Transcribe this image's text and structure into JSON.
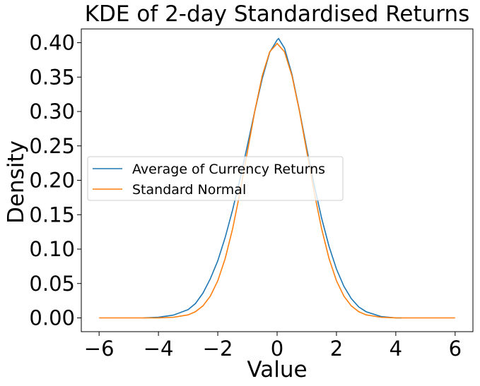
{
  "chart_data": {
    "type": "line",
    "title": "KDE of 2-day Standardised Returns",
    "xlabel": "Value",
    "ylabel": "Density",
    "xlim": [
      -6.6,
      6.6
    ],
    "ylim": [
      -0.02,
      0.42
    ],
    "xticks": [
      -6,
      -4,
      -2,
      0,
      2,
      4,
      6
    ],
    "xtick_labels": [
      "−6",
      "−4",
      "−2",
      "0",
      "2",
      "4",
      "6"
    ],
    "yticks": [
      0.0,
      0.05,
      0.1,
      0.15,
      0.2,
      0.25,
      0.3,
      0.35,
      0.4
    ],
    "ytick_labels": [
      "0.00",
      "0.05",
      "0.10",
      "0.15",
      "0.20",
      "0.25",
      "0.30",
      "0.35",
      "0.40"
    ],
    "grid": false,
    "legend_position": "center-left",
    "series": [
      {
        "name": "Average of Currency Returns",
        "color": "#1f77b4",
        "x": [
          -4.5,
          -4.0,
          -3.5,
          -3.0,
          -2.75,
          -2.5,
          -2.25,
          -2.0,
          -1.75,
          -1.5,
          -1.25,
          -1.0,
          -0.75,
          -0.5,
          -0.25,
          0.0,
          0.05,
          0.25,
          0.5,
          0.75,
          1.0,
          1.25,
          1.5,
          1.75,
          2.0,
          2.25,
          2.5,
          2.75,
          3.0,
          3.5,
          4.0,
          4.2
        ],
        "y": [
          0.0,
          0.001,
          0.004,
          0.012,
          0.021,
          0.036,
          0.057,
          0.083,
          0.117,
          0.157,
          0.202,
          0.251,
          0.301,
          0.348,
          0.386,
          0.404,
          0.406,
          0.392,
          0.354,
          0.302,
          0.246,
          0.193,
          0.145,
          0.104,
          0.071,
          0.046,
          0.028,
          0.016,
          0.009,
          0.002,
          0.0,
          0.0
        ]
      },
      {
        "name": "Standard Normal",
        "color": "#ff7f0e",
        "x": [
          -6.0,
          -5.0,
          -4.5,
          -4.0,
          -3.5,
          -3.0,
          -2.75,
          -2.5,
          -2.25,
          -2.0,
          -1.75,
          -1.5,
          -1.25,
          -1.0,
          -0.75,
          -0.5,
          -0.25,
          0.0,
          0.25,
          0.5,
          0.75,
          1.0,
          1.25,
          1.5,
          1.75,
          2.0,
          2.25,
          2.5,
          2.75,
          3.0,
          3.5,
          4.0,
          4.5,
          5.0,
          6.0
        ],
        "y": [
          0.0,
          0.0,
          0.0,
          0.0001,
          0.0009,
          0.0044,
          0.0091,
          0.0175,
          0.0317,
          0.054,
          0.0863,
          0.1295,
          0.1826,
          0.242,
          0.3011,
          0.3521,
          0.3867,
          0.3989,
          0.3867,
          0.3521,
          0.3011,
          0.242,
          0.1826,
          0.1295,
          0.0863,
          0.054,
          0.0317,
          0.0175,
          0.0091,
          0.0044,
          0.0009,
          0.0001,
          0.0,
          0.0,
          0.0
        ]
      }
    ]
  }
}
